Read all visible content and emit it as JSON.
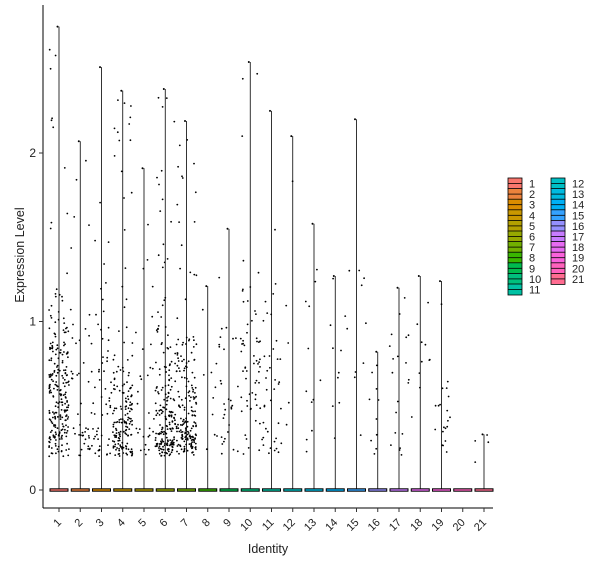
{
  "chart_data": {
    "type": "violin",
    "title": "",
    "xlabel": "Identity",
    "ylabel": "Expression Level",
    "ylim": [
      -0.12,
      2.9
    ],
    "yticks": [
      0,
      1,
      2
    ],
    "categories": [
      "1",
      "2",
      "3",
      "4",
      "5",
      "6",
      "7",
      "8",
      "9",
      "10",
      "11",
      "12",
      "13",
      "14",
      "15",
      "16",
      "17",
      "18",
      "19",
      "20",
      "21"
    ],
    "max_values": [
      2.75,
      2.07,
      2.51,
      2.37,
      1.91,
      2.38,
      2.19,
      1.21,
      1.55,
      2.54,
      2.25,
      2.1,
      1.58,
      1.27,
      2.2,
      0.82,
      1.2,
      1.27,
      1.24,
      0.0,
      0.33
    ],
    "point_counts": [
      240,
      45,
      60,
      170,
      30,
      200,
      190,
      10,
      30,
      60,
      40,
      5,
      12,
      10,
      10,
      10,
      20,
      10,
      20,
      0,
      4
    ],
    "point_centers": [
      0.55,
      0.6,
      0.6,
      0.35,
      0.5,
      0.4,
      0.45,
      0.6,
      0.6,
      0.7,
      0.7,
      1.0,
      0.8,
      0.9,
      0.9,
      0.5,
      0.7,
      0.9,
      0.4,
      0,
      0.3
    ],
    "point_spread": [
      0.25,
      0.35,
      0.35,
      0.25,
      0.35,
      0.25,
      0.25,
      0.3,
      0.3,
      0.3,
      0.35,
      0.5,
      0.4,
      0.3,
      0.4,
      0.2,
      0.3,
      0.3,
      0.15,
      0,
      0.03
    ],
    "legend": {
      "position": "right",
      "entries": [
        {
          "label": "1",
          "color": "#F8766D"
        },
        {
          "label": "2",
          "color": "#EC823C"
        },
        {
          "label": "3",
          "color": "#DC8D00"
        },
        {
          "label": "4",
          "color": "#C99800"
        },
        {
          "label": "5",
          "color": "#B3A000"
        },
        {
          "label": "6",
          "color": "#97A900"
        },
        {
          "label": "7",
          "color": "#72B000"
        },
        {
          "label": "8",
          "color": "#39B600"
        },
        {
          "label": "9",
          "color": "#00BB4E"
        },
        {
          "label": "10",
          "color": "#00BF7D"
        },
        {
          "label": "11",
          "color": "#00C1A3"
        },
        {
          "label": "12",
          "color": "#00BFC4"
        },
        {
          "label": "13",
          "color": "#00BAE0"
        },
        {
          "label": "14",
          "color": "#00B0F6"
        },
        {
          "label": "15",
          "color": "#35A2FF"
        },
        {
          "label": "16",
          "color": "#9590FF"
        },
        {
          "label": "17",
          "color": "#C77CFF"
        },
        {
          "label": "18",
          "color": "#E76BF3"
        },
        {
          "label": "19",
          "color": "#FA62DB"
        },
        {
          "label": "20",
          "color": "#FF62BC"
        },
        {
          "label": "21",
          "color": "#FF6C91"
        }
      ]
    },
    "grid": false
  }
}
